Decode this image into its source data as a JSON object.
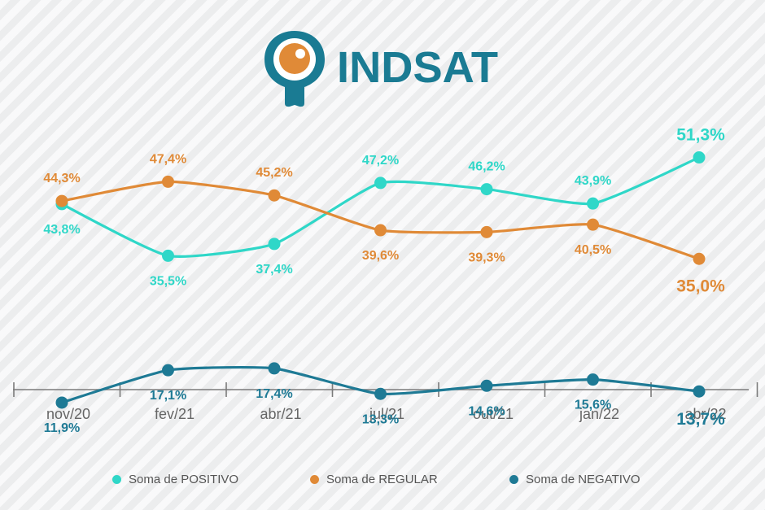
{
  "brand": {
    "name": "INDSAT"
  },
  "colors": {
    "positivo": "#2fd7c8",
    "regular": "#e08a37",
    "negativo": "#1e7a95",
    "axis": "#7b7b7b",
    "logo": "#1a7b93",
    "logo_accent": "#e08a37"
  },
  "chart_data": {
    "type": "line",
    "categories": [
      "nov/20",
      "fev/21",
      "abr/21",
      "jul/21",
      "out/21",
      "jan/22",
      "abr/22"
    ],
    "series": [
      {
        "name": "Soma de POSITIVO",
        "key": "positivo",
        "values": [
          43.8,
          35.5,
          37.4,
          47.2,
          46.2,
          43.9,
          51.3
        ],
        "labels": [
          "43,8%",
          "35,5%",
          "37,4%",
          "47,2%",
          "46,2%",
          "43,9%",
          "51,3%"
        ]
      },
      {
        "name": "Soma de REGULAR",
        "key": "regular",
        "values": [
          44.3,
          47.4,
          45.2,
          39.6,
          39.3,
          40.5,
          35.0
        ],
        "labels": [
          "44,3%",
          "47,4%",
          "45,2%",
          "39,6%",
          "39,3%",
          "40,5%",
          "35,0%"
        ]
      },
      {
        "name": "Soma de NEGATIVO",
        "key": "negativo",
        "values": [
          11.9,
          17.1,
          17.4,
          13.3,
          14.6,
          15.6,
          13.7
        ],
        "labels": [
          "11,9%",
          "17,1%",
          "17,4%",
          "13,3%",
          "14,6%",
          "15,6%",
          "13,7%"
        ]
      }
    ],
    "legend_position": "bottom",
    "grid": false
  }
}
